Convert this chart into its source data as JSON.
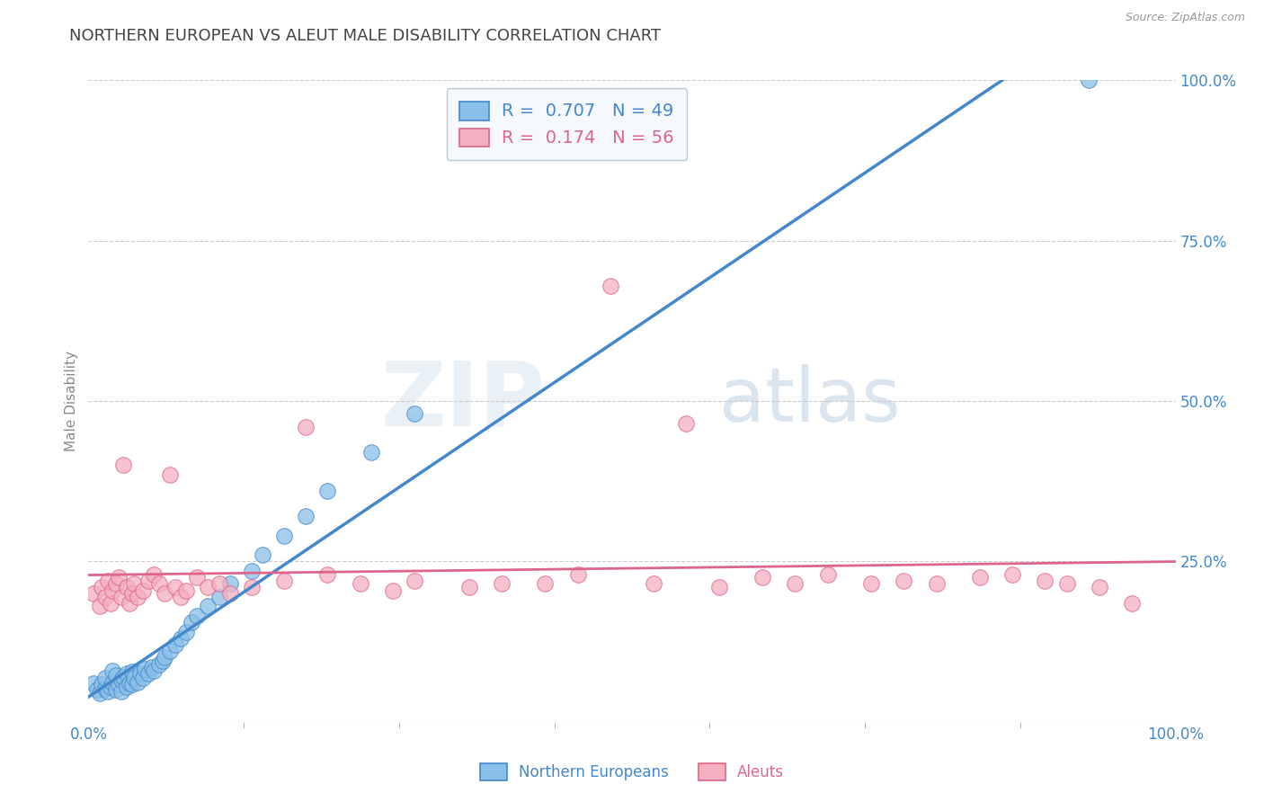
{
  "title": "NORTHERN EUROPEAN VS ALEUT MALE DISABILITY CORRELATION CHART",
  "source_text": "Source: ZipAtlas.com",
  "ylabel": "Male Disability",
  "xlim": [
    0.0,
    1.0
  ],
  "ylim": [
    0.0,
    1.0
  ],
  "x_tick_labels": [
    "0.0%",
    "100.0%"
  ],
  "y_tick_labels": [
    "25.0%",
    "50.0%",
    "75.0%",
    "100.0%"
  ],
  "y_tick_vals": [
    0.25,
    0.5,
    0.75,
    1.0
  ],
  "grid_color": "#cccccc",
  "background_color": "#ffffff",
  "title_color": "#444444",
  "title_fontsize": 13,
  "watermark_zip": "ZIP",
  "watermark_atlas": "atlas",
  "ne_R": 0.707,
  "ne_N": 49,
  "aleut_R": 0.174,
  "aleut_N": 56,
  "ne_color": "#89c0e8",
  "aleut_color": "#f4afc0",
  "ne_line_color": "#4488cc",
  "aleut_line_color": "#dd6688",
  "ne_label": "Northern Europeans",
  "aleut_label": "Aleuts",
  "ne_x": [
    0.005,
    0.008,
    0.01,
    0.012,
    0.015,
    0.015,
    0.018,
    0.02,
    0.022,
    0.022,
    0.025,
    0.025,
    0.028,
    0.03,
    0.03,
    0.032,
    0.035,
    0.035,
    0.038,
    0.04,
    0.04,
    0.042,
    0.045,
    0.048,
    0.05,
    0.052,
    0.055,
    0.058,
    0.06,
    0.065,
    0.068,
    0.07,
    0.075,
    0.08,
    0.085,
    0.09,
    0.095,
    0.1,
    0.11,
    0.12,
    0.13,
    0.15,
    0.16,
    0.18,
    0.2,
    0.22,
    0.26,
    0.3,
    0.92
  ],
  "ne_y": [
    0.06,
    0.05,
    0.045,
    0.058,
    0.052,
    0.068,
    0.048,
    0.055,
    0.062,
    0.08,
    0.05,
    0.072,
    0.058,
    0.048,
    0.065,
    0.07,
    0.055,
    0.075,
    0.06,
    0.058,
    0.078,
    0.068,
    0.062,
    0.075,
    0.068,
    0.082,
    0.075,
    0.085,
    0.08,
    0.09,
    0.095,
    0.1,
    0.11,
    0.12,
    0.13,
    0.14,
    0.155,
    0.165,
    0.18,
    0.195,
    0.215,
    0.235,
    0.26,
    0.29,
    0.32,
    0.36,
    0.42,
    0.48,
    1.0
  ],
  "aleut_x": [
    0.005,
    0.01,
    0.012,
    0.015,
    0.018,
    0.02,
    0.022,
    0.025,
    0.028,
    0.03,
    0.032,
    0.035,
    0.038,
    0.04,
    0.042,
    0.045,
    0.05,
    0.055,
    0.06,
    0.065,
    0.07,
    0.075,
    0.08,
    0.085,
    0.09,
    0.1,
    0.11,
    0.12,
    0.13,
    0.15,
    0.18,
    0.2,
    0.22,
    0.25,
    0.28,
    0.3,
    0.35,
    0.38,
    0.42,
    0.45,
    0.48,
    0.52,
    0.55,
    0.58,
    0.62,
    0.65,
    0.68,
    0.72,
    0.75,
    0.78,
    0.82,
    0.85,
    0.88,
    0.9,
    0.93,
    0.96
  ],
  "aleut_y": [
    0.2,
    0.18,
    0.21,
    0.195,
    0.22,
    0.185,
    0.205,
    0.215,
    0.225,
    0.195,
    0.4,
    0.21,
    0.185,
    0.2,
    0.215,
    0.195,
    0.205,
    0.22,
    0.23,
    0.215,
    0.2,
    0.385,
    0.21,
    0.195,
    0.205,
    0.225,
    0.21,
    0.215,
    0.2,
    0.21,
    0.22,
    0.46,
    0.23,
    0.215,
    0.205,
    0.22,
    0.21,
    0.215,
    0.215,
    0.23,
    0.68,
    0.215,
    0.465,
    0.21,
    0.225,
    0.215,
    0.23,
    0.215,
    0.22,
    0.215,
    0.225,
    0.23,
    0.22,
    0.215,
    0.21,
    0.185
  ]
}
